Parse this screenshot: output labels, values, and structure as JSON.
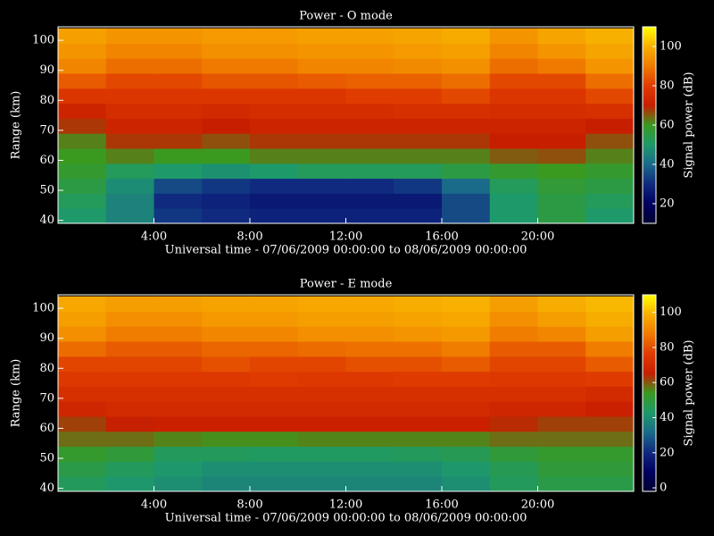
{
  "chart_data": [
    {
      "type": "heatmap",
      "title": "Power - O mode",
      "xlabel": "Universal time - 07/06/2009 00:00:00 to 08/06/2009 00:00:00",
      "ylabel": "Range (km)",
      "colorbar_label": "Signal power (dB)",
      "x": [
        1,
        3,
        5,
        7,
        9,
        11,
        13,
        15,
        17,
        19,
        21,
        23
      ],
      "y": [
        41.5,
        46.5,
        51.5,
        56.5,
        61.5,
        66.5,
        71.5,
        76.5,
        81.5,
        86.5,
        91.5,
        96.5,
        101.5
      ],
      "values": [
        [
          50,
          45,
          32,
          30,
          28,
          28,
          28,
          28,
          35,
          50,
          55,
          50
        ],
        [
          52,
          45,
          30,
          28,
          26,
          26,
          26,
          26,
          35,
          50,
          55,
          52
        ],
        [
          55,
          47,
          35,
          32,
          30,
          30,
          30,
          32,
          40,
          52,
          57,
          55
        ],
        [
          58,
          52,
          50,
          48,
          50,
          52,
          52,
          52,
          55,
          58,
          60,
          58
        ],
        [
          60,
          62,
          60,
          60,
          62,
          62,
          62,
          62,
          62,
          65,
          66,
          62
        ],
        [
          62,
          68,
          68,
          66,
          68,
          68,
          68,
          68,
          68,
          70,
          70,
          66
        ],
        [
          68,
          72,
          72,
          70,
          72,
          72,
          72,
          72,
          72,
          72,
          72,
          70
        ],
        [
          72,
          75,
          75,
          74,
          75,
          75,
          75,
          76,
          76,
          75,
          75,
          76
        ],
        [
          78,
          78,
          78,
          78,
          78,
          78,
          80,
          80,
          82,
          78,
          78,
          82
        ],
        [
          85,
          82,
          82,
          84,
          84,
          85,
          86,
          86,
          88,
          82,
          82,
          88
        ],
        [
          92,
          88,
          88,
          90,
          90,
          92,
          92,
          93,
          94,
          88,
          90,
          95
        ],
        [
          95,
          92,
          92,
          94,
          94,
          95,
          95,
          96,
          97,
          92,
          95,
          98
        ],
        [
          97,
          95,
          95,
          96,
          96,
          97,
          97,
          98,
          99,
          95,
          98,
          100
        ]
      ],
      "xlim": [
        0,
        24
      ],
      "ylim": [
        39,
        104.5
      ],
      "xticks": [
        {
          "value": 4,
          "label": "4:00"
        },
        {
          "value": 8,
          "label": "8:00"
        },
        {
          "value": 12,
          "label": "12:00"
        },
        {
          "value": 16,
          "label": "16:00"
        },
        {
          "value": 20,
          "label": "20:00"
        }
      ],
      "yticks": [
        40,
        50,
        60,
        70,
        80,
        90,
        100
      ],
      "zlim": [
        10,
        110
      ],
      "zticks": [
        20,
        40,
        60,
        80,
        100
      ],
      "colorscale": [
        "#000030",
        "#000060",
        "#102a80",
        "#1a6a8a",
        "#1e9a6a",
        "#3a9a20",
        "#c81e00",
        "#e03c00",
        "#f07a00",
        "#f8b000",
        "#ffff00"
      ]
    },
    {
      "type": "heatmap",
      "title": "Power - E mode",
      "xlabel": "Universal time - 07/06/2009 00:00:00 to 08/06/2009 00:00:00",
      "ylabel": "Range (km)",
      "colorbar_label": "Signal power (dB)",
      "x": [
        1,
        3,
        5,
        7,
        9,
        11,
        13,
        15,
        17,
        19,
        21,
        23
      ],
      "y": [
        41.5,
        46.5,
        51.5,
        56.5,
        61.5,
        66.5,
        71.5,
        76.5,
        81.5,
        86.5,
        91.5,
        96.5,
        101.5
      ],
      "values": [
        [
          45,
          42,
          40,
          38,
          38,
          38,
          38,
          38,
          40,
          45,
          48,
          48
        ],
        [
          48,
          45,
          42,
          40,
          40,
          40,
          40,
          40,
          42,
          46,
          50,
          50
        ],
        [
          52,
          50,
          45,
          45,
          44,
          44,
          44,
          45,
          46,
          50,
          52,
          52
        ],
        [
          58,
          58,
          56,
          55,
          55,
          56,
          56,
          56,
          56,
          58,
          58,
          58
        ],
        [
          62,
          65,
          66,
          66,
          66,
          66,
          66,
          66,
          66,
          64,
          62,
          62
        ],
        [
          68,
          70,
          70,
          70,
          70,
          70,
          70,
          70,
          70,
          68,
          68,
          66
        ],
        [
          72,
          72,
          72,
          72,
          72,
          72,
          72,
          72,
          72,
          72,
          72,
          70
        ],
        [
          75,
          75,
          75,
          75,
          76,
          75,
          75,
          76,
          76,
          75,
          75,
          76
        ],
        [
          78,
          78,
          78,
          80,
          78,
          78,
          80,
          80,
          82,
          78,
          78,
          82
        ],
        [
          85,
          82,
          82,
          84,
          84,
          85,
          86,
          86,
          88,
          82,
          82,
          88
        ],
        [
          92,
          88,
          88,
          90,
          90,
          92,
          92,
          93,
          94,
          88,
          90,
          95
        ],
        [
          95,
          92,
          92,
          94,
          94,
          95,
          95,
          96,
          97,
          92,
          95,
          98
        ],
        [
          97,
          95,
          95,
          96,
          96,
          97,
          97,
          98,
          99,
          95,
          98,
          100
        ]
      ],
      "xlim": [
        0,
        24
      ],
      "ylim": [
        39,
        104.5
      ],
      "xticks": [
        {
          "value": 4,
          "label": "4:00"
        },
        {
          "value": 8,
          "label": "8:00"
        },
        {
          "value": 12,
          "label": "12:00"
        },
        {
          "value": 16,
          "label": "16:00"
        },
        {
          "value": 20,
          "label": "20:00"
        }
      ],
      "yticks": [
        40,
        50,
        60,
        70,
        80,
        90,
        100
      ],
      "zlim": [
        -2,
        110
      ],
      "zticks": [
        0,
        20,
        40,
        60,
        80,
        100
      ],
      "colorscale": [
        "#000030",
        "#000060",
        "#102a80",
        "#1a6a8a",
        "#1e9a6a",
        "#3a9a20",
        "#c81e00",
        "#e03c00",
        "#f07a00",
        "#f8b000",
        "#ffff00"
      ]
    }
  ]
}
